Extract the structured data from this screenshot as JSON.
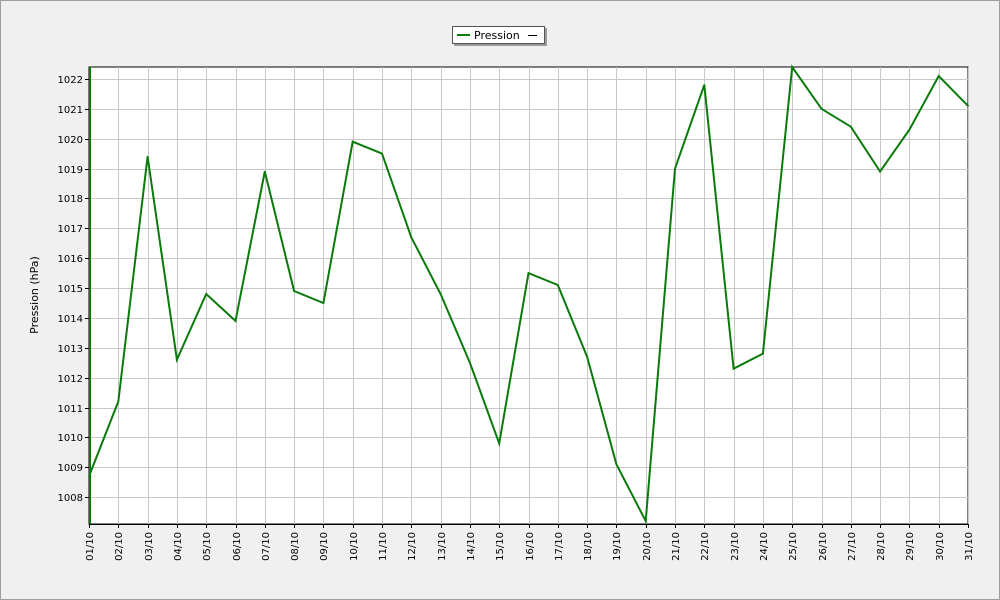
{
  "chart_data": {
    "type": "line",
    "ylabel": "Pression (hPa)",
    "xlabel": "",
    "ylim": [
      1007.1,
      1022.4
    ],
    "yticks": [
      1008,
      1009,
      1010,
      1011,
      1012,
      1013,
      1014,
      1015,
      1016,
      1017,
      1018,
      1019,
      1020,
      1021,
      1022
    ],
    "grid": true,
    "legend_position": "top-center",
    "categories": [
      "01/10",
      "02/10",
      "03/10",
      "04/10",
      "05/10",
      "06/10",
      "07/10",
      "08/10",
      "09/10",
      "10/10",
      "11/10",
      "12/10",
      "13/10",
      "14/10",
      "15/10",
      "16/10",
      "17/10",
      "18/10",
      "19/10",
      "20/10",
      "21/10",
      "22/10",
      "23/10",
      "24/10",
      "25/10",
      "26/10",
      "27/10",
      "28/10",
      "29/10",
      "30/10",
      "31/10"
    ],
    "series": [
      {
        "name": "Pression",
        "color": "#0a7a0a",
        "values": [
          1008.7,
          1011.2,
          1019.4,
          1012.6,
          1014.8,
          1013.9,
          1018.9,
          1014.9,
          1014.5,
          1019.9,
          1019.5,
          1016.7,
          1014.8,
          1012.5,
          1009.8,
          1015.5,
          1015.1,
          1012.7,
          1009.1,
          1007.2,
          1019.0,
          1021.8,
          1012.3,
          1012.8,
          1022.4,
          1021.0,
          1020.4,
          1018.9,
          1020.3,
          1022.1,
          1021.1
        ]
      }
    ]
  }
}
